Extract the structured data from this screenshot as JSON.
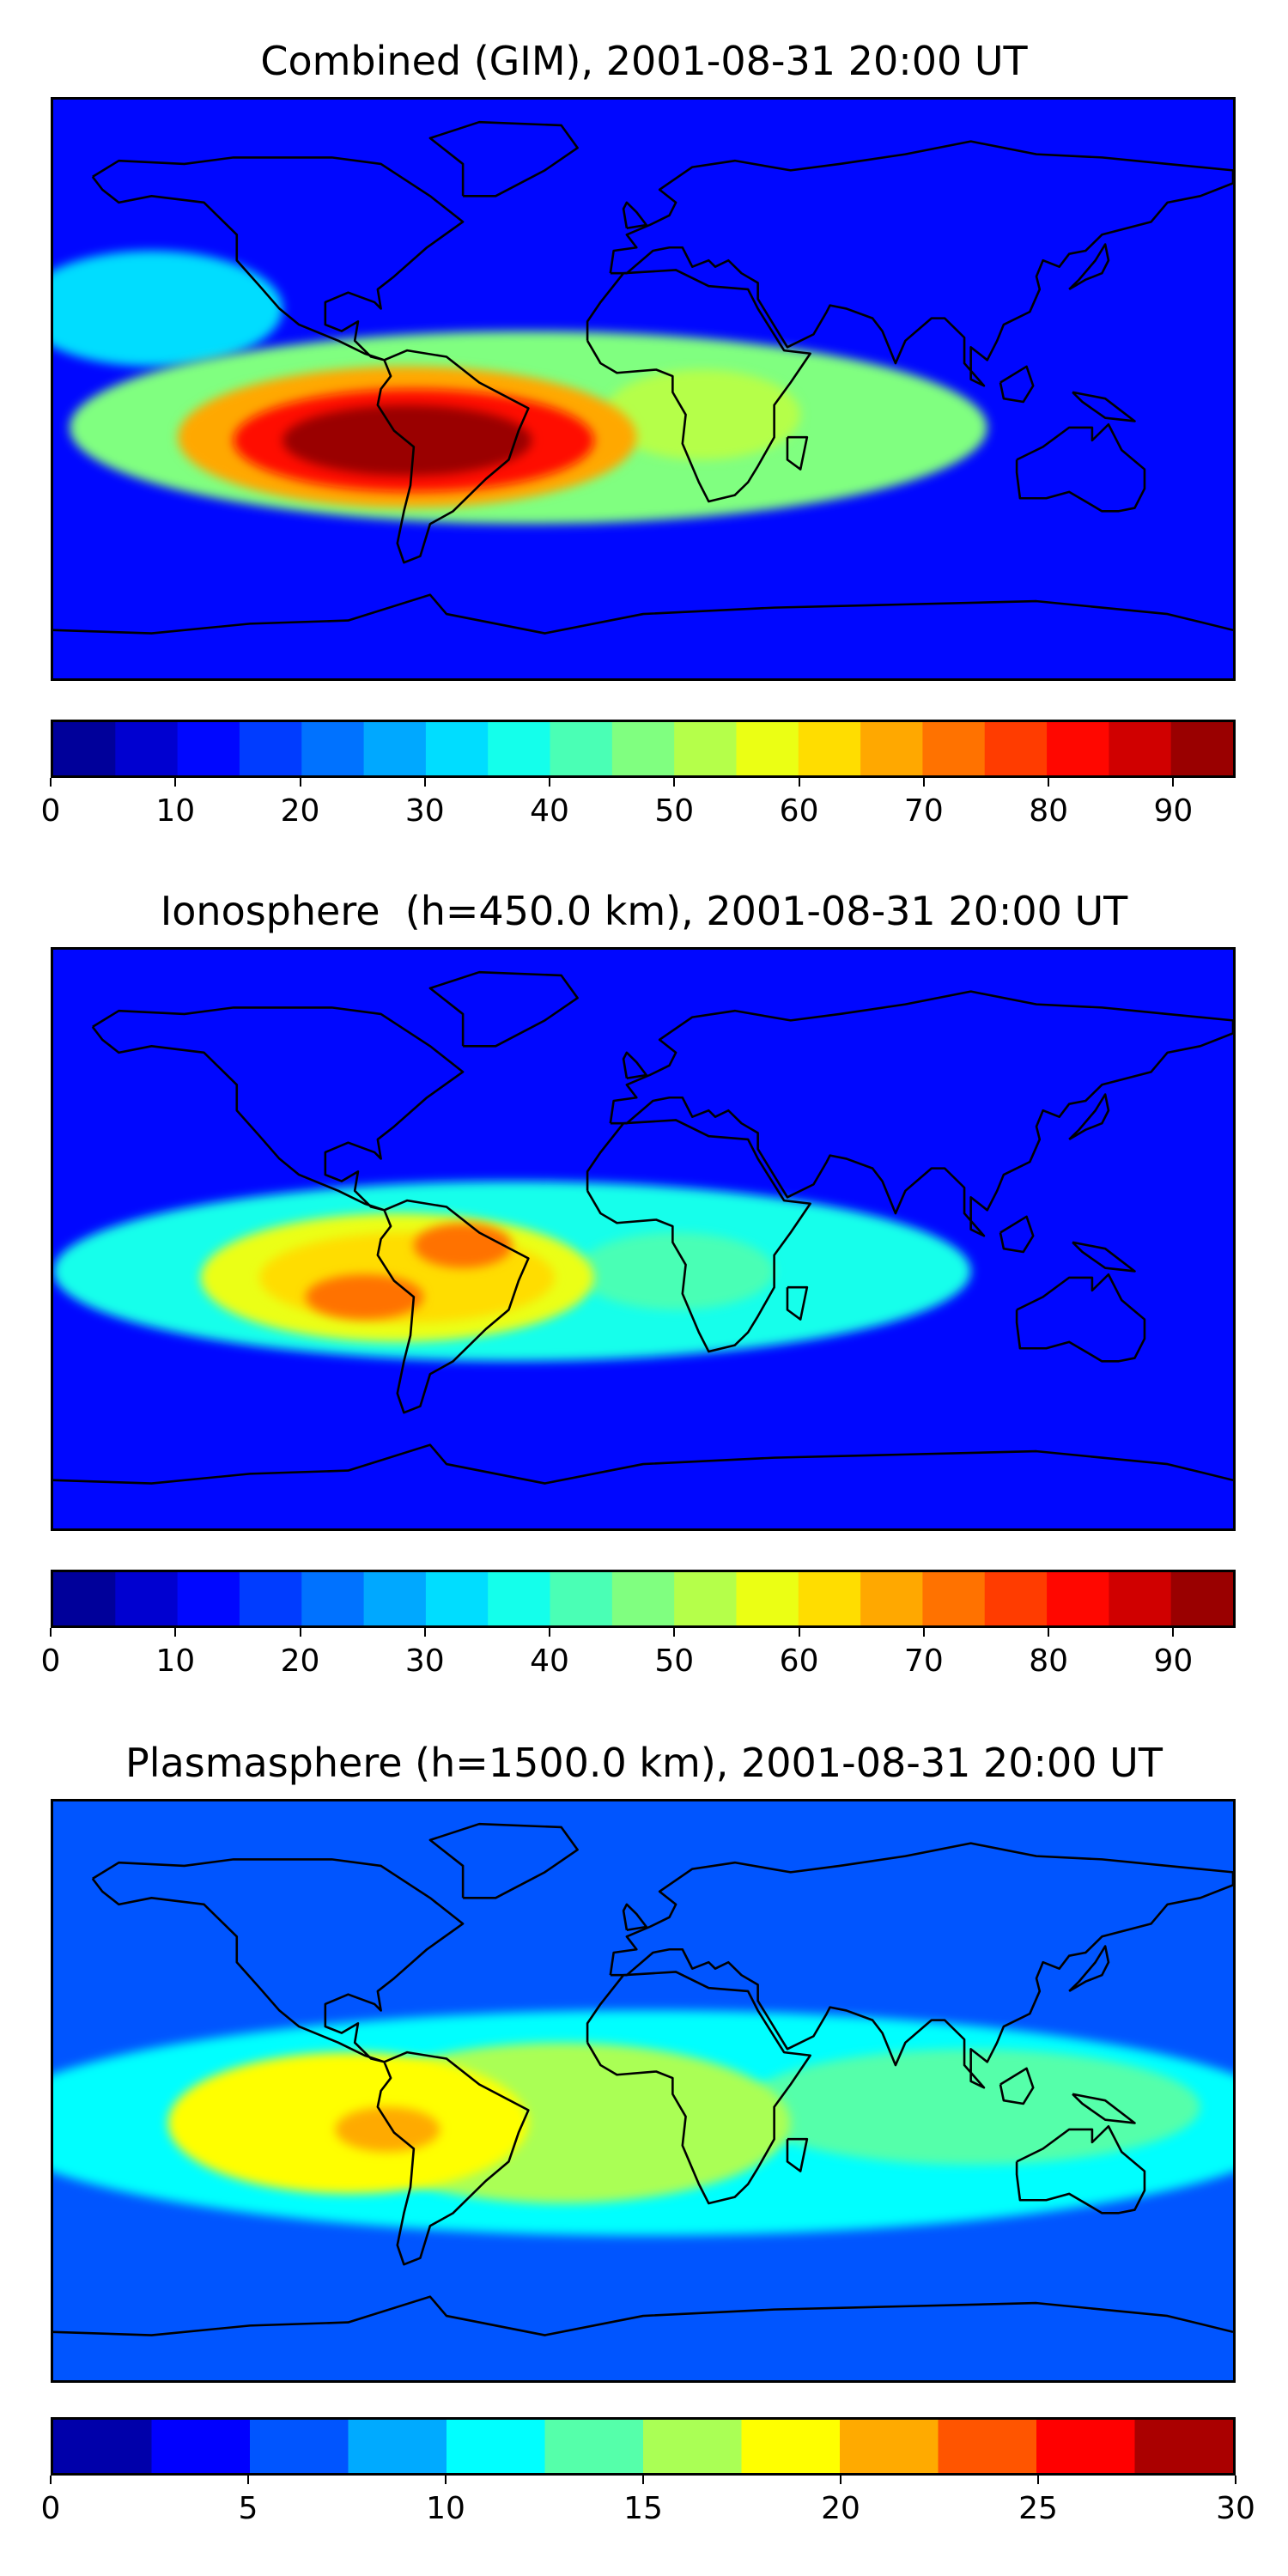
{
  "chart_data": [
    {
      "type": "heatmap",
      "title": "Combined (GIM), 2001-08-31 20:00 UT",
      "colorbar": {
        "min": 0,
        "max": 95,
        "step": 5,
        "tick_labels": [
          "0",
          "10",
          "20",
          "30",
          "40",
          "50",
          "60",
          "70",
          "80",
          "90"
        ],
        "tick_values": [
          0,
          10,
          20,
          30,
          40,
          50,
          60,
          70,
          80,
          90
        ]
      },
      "background_level": 10,
      "features": [
        {
          "name": "equatorial-anomaly-band",
          "lon": -35,
          "lat": -12,
          "rx": 140,
          "ry": 30,
          "level": 45
        },
        {
          "name": "peak-outer",
          "lon": -72,
          "lat": -15,
          "rx": 70,
          "ry": 22,
          "level": 65
        },
        {
          "name": "peak-mid",
          "lon": -70,
          "lat": -16,
          "rx": 55,
          "ry": 16,
          "level": 80
        },
        {
          "name": "peak-core",
          "lon": -72,
          "lat": -16,
          "rx": 38,
          "ry": 11,
          "level": 90
        },
        {
          "name": "africa-lobe",
          "lon": 18,
          "lat": -8,
          "rx": 30,
          "ry": 14,
          "level": 50
        },
        {
          "name": "north-pacific-high",
          "lon": -150,
          "lat": 25,
          "rx": 40,
          "ry": 18,
          "level": 30
        }
      ]
    },
    {
      "type": "heatmap",
      "title": "Ionosphere  (h=450.0 km), 2001-08-31 20:00 UT",
      "colorbar": {
        "min": 0,
        "max": 95,
        "step": 5,
        "tick_labels": [
          "0",
          "10",
          "20",
          "30",
          "40",
          "50",
          "60",
          "70",
          "80",
          "90"
        ],
        "tick_values": [
          0,
          10,
          20,
          30,
          40,
          50,
          60,
          70,
          80,
          90
        ]
      },
      "background_level": 10,
      "features": [
        {
          "name": "equatorial-band",
          "lon": -40,
          "lat": -10,
          "rx": 140,
          "ry": 28,
          "level": 35
        },
        {
          "name": "peak-outer",
          "lon": -75,
          "lat": -12,
          "rx": 60,
          "ry": 20,
          "level": 55
        },
        {
          "name": "peak-mid",
          "lon": -72,
          "lat": -12,
          "rx": 45,
          "ry": 14,
          "level": 60
        },
        {
          "name": "peak-core",
          "lon": -85,
          "lat": -18,
          "rx": 18,
          "ry": 7,
          "level": 70
        },
        {
          "name": "amazon-peak",
          "lon": -55,
          "lat": -2,
          "rx": 15,
          "ry": 7,
          "level": 70
        },
        {
          "name": "africa-lobe",
          "lon": 10,
          "lat": -10,
          "rx": 30,
          "ry": 12,
          "level": 40
        }
      ]
    },
    {
      "type": "heatmap",
      "title": "Plasmasphere (h=1500.0 km), 2001-08-31 20:00 UT",
      "colorbar": {
        "min": 0,
        "max": 30,
        "step": 2.5,
        "tick_labels": [
          "0",
          "5",
          "10",
          "15",
          "20",
          "25",
          "30"
        ],
        "tick_values": [
          0,
          5,
          10,
          15,
          20,
          25,
          30
        ]
      },
      "background_level": 5,
      "features": [
        {
          "name": "global-equatorial-band",
          "lon": 0,
          "lat": -10,
          "rx": 200,
          "ry": 35,
          "level": 10
        },
        {
          "name": "asia-band",
          "lon": 100,
          "lat": -5,
          "rx": 70,
          "ry": 18,
          "level": 12.5
        },
        {
          "name": "atlantic-lobe",
          "lon": -25,
          "lat": -10,
          "rx": 70,
          "ry": 25,
          "level": 15
        },
        {
          "name": "america-lobe",
          "lon": -90,
          "lat": -10,
          "rx": 55,
          "ry": 22,
          "level": 17.5
        },
        {
          "name": "peak-core",
          "lon": -78,
          "lat": -12,
          "rx": 16,
          "ry": 7,
          "level": 20
        }
      ]
    }
  ]
}
